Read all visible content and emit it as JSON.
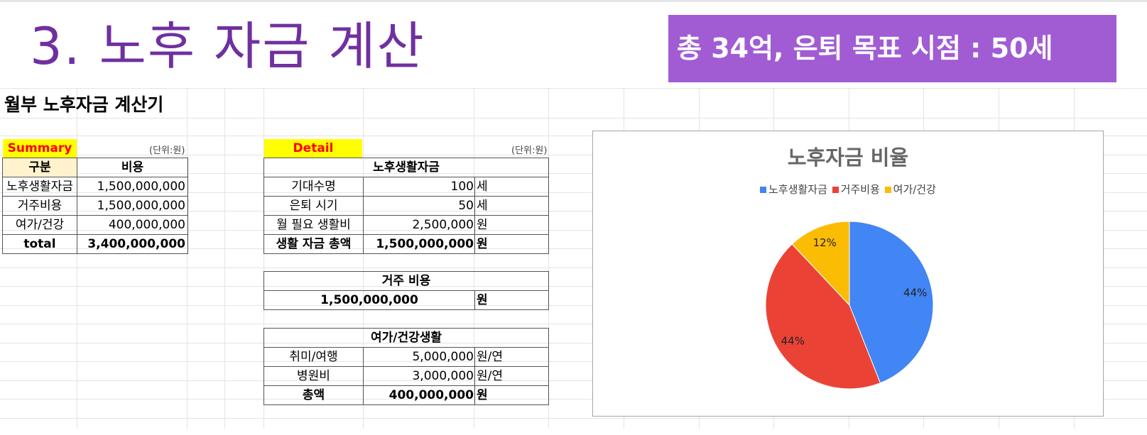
{
  "page": {
    "title": "3. 노후 자금 계산",
    "banner": "총 34억, 은퇴 목표 시점  : 50세",
    "subtitle": "월부 노후자금 계산기"
  },
  "summary": {
    "label": "Summary",
    "unit": "(단위:원)",
    "headers": {
      "category": "구분",
      "cost": "비용"
    },
    "rows": [
      {
        "category": "노후생활자금",
        "cost": "1,500,000,000"
      },
      {
        "category": "거주비용",
        "cost": "1,500,000,000"
      },
      {
        "category": "여가/건강",
        "cost": "400,000,000"
      }
    ],
    "total": {
      "label": "total",
      "cost": "3,400,000,000"
    }
  },
  "detail": {
    "label": "Detail",
    "unit": "(단위:원)",
    "living": {
      "header": "노후생활자금",
      "rows": [
        {
          "label": "기대수명",
          "value": "100",
          "unit": "세"
        },
        {
          "label": "은퇴 시기",
          "value": "50",
          "unit": "세"
        },
        {
          "label": "월 필요 생활비",
          "value": "2,500,000",
          "unit": "원"
        }
      ],
      "total": {
        "label": "생활 자금 총액",
        "value": "1,500,000,000",
        "unit": "원"
      }
    },
    "housing": {
      "header": "거주 비용",
      "value": "1,500,000,000",
      "unit": "원"
    },
    "leisure": {
      "header": "여가/건강생활",
      "rows": [
        {
          "label": "취미/여행",
          "value": "5,000,000",
          "unit": "원/연"
        },
        {
          "label": "병원비",
          "value": "3,000,000",
          "unit": "원/연"
        }
      ],
      "total": {
        "label": "총액",
        "value": "400,000,000",
        "unit": "원"
      }
    }
  },
  "chart_data": {
    "type": "pie",
    "title": "노후자금 비율",
    "categories": [
      "노후생활자금",
      "거주비용",
      "여가/건강"
    ],
    "values": [
      44,
      44,
      12
    ],
    "labels": [
      "44%",
      "44%",
      "12%"
    ],
    "colors": [
      "#4285f4",
      "#ea4335",
      "#fbbc04"
    ],
    "legend": "top"
  }
}
